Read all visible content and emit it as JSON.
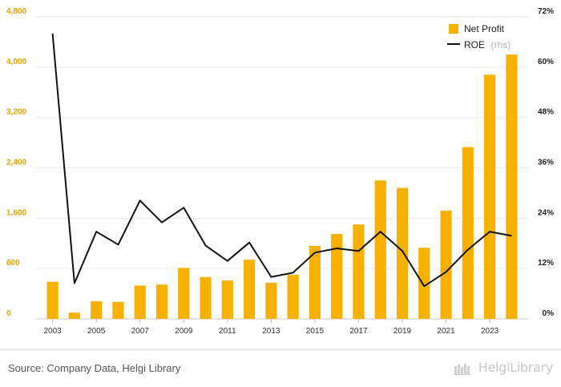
{
  "chart_data": {
    "type": "bar",
    "categories": [
      "2003",
      "2004",
      "2005",
      "2006",
      "2007",
      "2008",
      "2009",
      "2010",
      "2011",
      "2012",
      "2013",
      "2014",
      "2015",
      "2016",
      "2017",
      "2018",
      "2019",
      "2020",
      "2021",
      "2022",
      "2023",
      "2024"
    ],
    "x_tick_labels": [
      "2003",
      "2005",
      "2007",
      "2009",
      "2011",
      "2013",
      "2015",
      "2017",
      "2019",
      "2021",
      "2023"
    ],
    "series": [
      {
        "name": "Net Profit",
        "type": "bar",
        "axis": "left",
        "color": "#f5b000",
        "values": [
          590,
          100,
          280,
          270,
          530,
          545,
          810,
          665,
          610,
          940,
          575,
          700,
          1160,
          1350,
          1500,
          2200,
          2080,
          1130,
          1720,
          2730,
          3880,
          4200
        ]
      },
      {
        "name": "ROE",
        "name_note": "(rhs)",
        "type": "line",
        "axis": "right",
        "color": "#111111",
        "values": [
          68.0,
          8.5,
          20.8,
          17.7,
          28.2,
          23.0,
          26.5,
          17.5,
          13.8,
          18.2,
          10.0,
          11.0,
          15.8,
          16.8,
          16.2,
          20.8,
          16.2,
          7.8,
          11.2,
          16.5,
          20.8,
          19.8
        ]
      }
    ],
    "y_left": {
      "ylim": [
        0,
        4800
      ],
      "ticks": [
        "0",
        "800",
        "1,600",
        "2,400",
        "3,200",
        "4,000",
        "4,800"
      ]
    },
    "y_right": {
      "ylim": [
        0,
        72
      ],
      "ticks": [
        "0%",
        "12%",
        "24%",
        "36%",
        "48%",
        "60%",
        "72%"
      ]
    },
    "grid": true,
    "legend": "top-right"
  },
  "footer": {
    "source": "Source: Company Data, Helgi Library",
    "brand": "HelgiLibrary"
  },
  "colors": {
    "bar": "#f5b000",
    "line": "#111111",
    "left_axis_text": "#e8a200"
  }
}
